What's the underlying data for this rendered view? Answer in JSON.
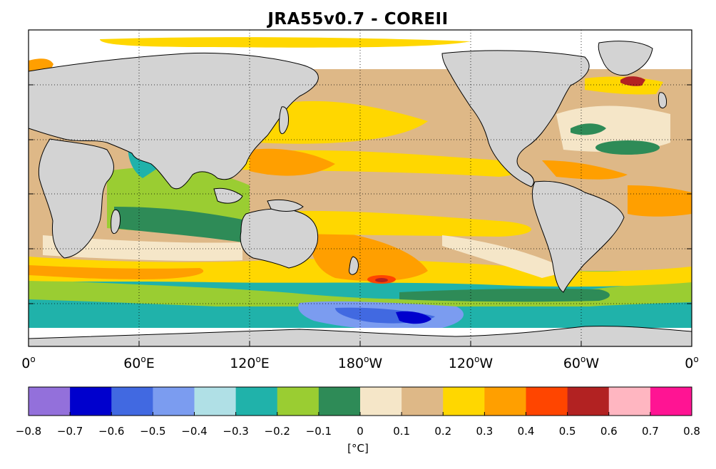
{
  "title": "JRA55v0.7 - COREII",
  "colors": {
    "land": "#d3d3d3",
    "ocean_fill": "#f5e6c8",
    "frame": "#000000"
  },
  "map": {
    "x_ticks": [
      {
        "deg": "0",
        "hem": ""
      },
      {
        "deg": "60",
        "hem": "E"
      },
      {
        "deg": "120",
        "hem": "E"
      },
      {
        "deg": "180",
        "hem": "W"
      },
      {
        "deg": "120",
        "hem": "W"
      },
      {
        "deg": "60",
        "hem": "W"
      },
      {
        "deg": "0",
        "hem": ""
      }
    ],
    "degree_symbol": "o",
    "gridlines": "dotted"
  },
  "colorbar": {
    "ticks": [
      "-0.8",
      "-0.7",
      "-0.6",
      "-0.5",
      "-0.4",
      "-0.3",
      "-0.2",
      "-0.1",
      "0",
      "0.1",
      "0.2",
      "0.3",
      "0.4",
      "0.5",
      "0.6",
      "0.7",
      "0.8"
    ],
    "colors": [
      "#9370db",
      "#0000cd",
      "#4169e1",
      "#7b9cf0",
      "#b0e0e6",
      "#20b2aa",
      "#9acd32",
      "#2e8b57",
      "#f5e6c8",
      "#deb887",
      "#ffd700",
      "#ff9f00",
      "#ff4500",
      "#b22222",
      "#ffb6c1",
      "#ff1493"
    ],
    "units": "[°C]"
  }
}
